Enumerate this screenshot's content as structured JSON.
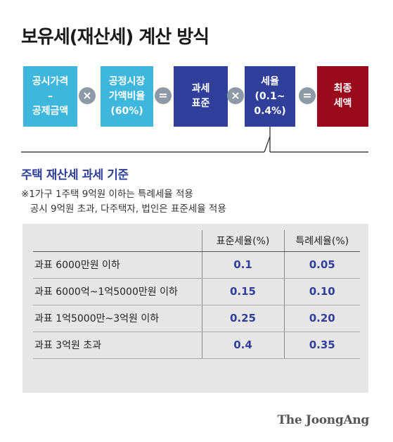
{
  "title": "보유세(재산세) 계산 방식",
  "formula": {
    "boxes": [
      {
        "text": "공시가격\n–\n공제금액",
        "color": "#3fb7dd"
      },
      {
        "text": "공정시장\n가액비율\n(60%)",
        "color": "#3fb7dd"
      },
      {
        "text": "과세\n표준",
        "color": "#2f3f9a"
      },
      {
        "text": "세율\n(0.1~\n0.4%)",
        "color": "#2f3f9a"
      },
      {
        "text": "최종\n세액",
        "color": "#9b0a1c"
      }
    ],
    "operators": [
      "×",
      "=",
      "×",
      "="
    ]
  },
  "subtitle": "주택 재산세 과세 기준",
  "note": "※1가구 1주택 9억원 이하는 특례세율 적용\n   공시 9억원 초과, 다주택자, 법인은 표준세율 적용",
  "table": {
    "headers": [
      "",
      "표준세율(%)",
      "특례세율(%)"
    ],
    "rows": [
      {
        "label": "과표 6000만원 이하",
        "standard": "0.1",
        "special": "0.05"
      },
      {
        "label": "과표 6000억~1억5000만원 이하",
        "standard": "0.15",
        "special": "0.10"
      },
      {
        "label": "과표 1억5000만~3억원 이하",
        "standard": "0.25",
        "special": "0.20"
      },
      {
        "label": "과표 3억원 초과",
        "standard": "0.4",
        "special": "0.35"
      }
    ]
  },
  "logo": "The JoongAng"
}
